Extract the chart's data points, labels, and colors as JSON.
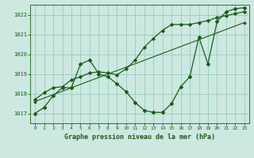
{
  "title": "Graphe pression niveau de la mer (hPa)",
  "background_color": "#cce8e0",
  "grid_color": "#99ccbb",
  "line_color": "#1a5c1a",
  "xlim": [
    -0.5,
    23.5
  ],
  "ylim": [
    1016.5,
    1022.5
  ],
  "yticks": [
    1017,
    1018,
    1019,
    1020,
    1021,
    1022
  ],
  "xticks": [
    0,
    1,
    2,
    3,
    4,
    5,
    6,
    7,
    8,
    9,
    10,
    11,
    12,
    13,
    14,
    15,
    16,
    17,
    18,
    19,
    20,
    21,
    22,
    23
  ],
  "series0": [
    1017.0,
    1017.3,
    1017.9,
    1018.3,
    1018.3,
    1019.5,
    1019.7,
    1019.0,
    1018.85,
    1018.5,
    1018.1,
    1017.55,
    1017.15,
    1017.05,
    1017.05,
    1017.5,
    1018.35,
    1018.85,
    1020.85,
    1019.5,
    1021.65,
    1022.15,
    1022.3,
    1022.35
  ],
  "series1": [
    1017.7,
    1018.05,
    1018.3,
    1018.35,
    1018.7,
    1018.85,
    1019.05,
    1019.1,
    1019.05,
    1018.95,
    1019.25,
    1019.7,
    1020.35,
    1020.8,
    1021.2,
    1021.5,
    1021.5,
    1021.5,
    1021.6,
    1021.7,
    1021.85,
    1021.95,
    1022.05,
    1022.15
  ],
  "series2_x": [
    0,
    23
  ],
  "series2_y": [
    1017.6,
    1021.6
  ]
}
